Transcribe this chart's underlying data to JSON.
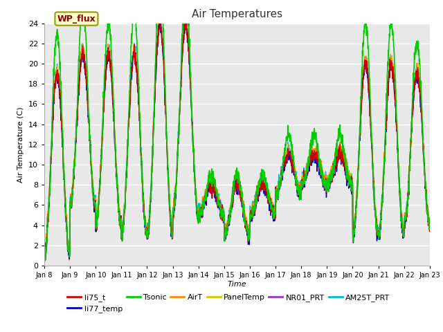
{
  "title": "Air Temperatures",
  "ylabel": "Air Temperature (C)",
  "xlabel": "Time",
  "ylim": [
    0,
    24
  ],
  "background_color": "#e8e8e8",
  "figure_color": "#ffffff",
  "grid_color": "#ffffff",
  "wp_flux_label": "WP_flux",
  "wp_flux_bg": "#ffffcc",
  "wp_flux_fg": "#880000",
  "wp_flux_edge": "#999900",
  "tick_labels": [
    "Jan 8",
    "Jan 9",
    "Jan 10",
    "Jan 11",
    "Jan 12",
    "Jan 13",
    "Jan 14",
    "Jan 15",
    "Jan 16",
    "Jan 17",
    "Jan 18",
    "Jan 19",
    "Jan 20",
    "Jan 21",
    "Jan 22",
    "Jan 23"
  ],
  "series_order": [
    "AM25T_PRT",
    "NR01_PRT",
    "PanelTemp",
    "AirT",
    "li77_temp",
    "li75_t",
    "Tsonic"
  ],
  "legend_order": [
    "li75_t",
    "li77_temp",
    "Tsonic",
    "AirT",
    "PanelTemp",
    "NR01_PRT",
    "AM25T_PRT"
  ],
  "series": {
    "li75_t": {
      "color": "#cc0000",
      "lw": 1.0
    },
    "li77_temp": {
      "color": "#0000bb",
      "lw": 1.0
    },
    "Tsonic": {
      "color": "#00cc00",
      "lw": 1.2
    },
    "AirT": {
      "color": "#ff8800",
      "lw": 1.0
    },
    "PanelTemp": {
      "color": "#cccc00",
      "lw": 1.0
    },
    "NR01_PRT": {
      "color": "#9933cc",
      "lw": 1.0
    },
    "AM25T_PRT": {
      "color": "#00bbcc",
      "lw": 1.0
    }
  },
  "day_mins": [
    1,
    6,
    4,
    3,
    3,
    5,
    5,
    3,
    5,
    7,
    8,
    8,
    3,
    3,
    4,
    5
  ],
  "day_maxs": [
    19,
    21,
    21,
    21,
    24,
    24,
    8,
    8,
    8,
    11,
    11,
    11,
    20,
    20,
    19,
    18
  ],
  "tsonic_boost_day": [
    4,
    5,
    3,
    4,
    4,
    3,
    1,
    1,
    1,
    2,
    2,
    2,
    4,
    4,
    3,
    3
  ]
}
